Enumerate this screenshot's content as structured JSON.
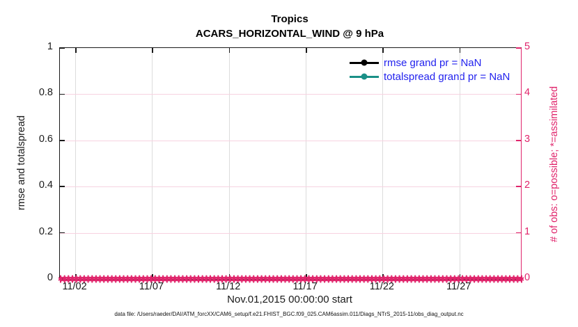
{
  "colors": {
    "axis_pink": "#E0246B",
    "series_teal": "#1A9087",
    "series_black": "#000000",
    "legend_text_blue": "#2222EE",
    "grid_x_gray": "#dcdcdc",
    "grid_y_pink": "#f7d2e0"
  },
  "chart_data": {
    "type": "line",
    "title": "Tropics",
    "subtitle": "ACARS_HORIZONTAL_WIND @ 9 hPa",
    "xlabel": "Nov.01,2015 00:00:00 start",
    "ylabel_left": "rmse and totalspread",
    "ylabel_right": "# of obs: o=possible; *=assimilated",
    "x_tick_labels": [
      "11/02",
      "11/07",
      "11/12",
      "11/17",
      "11/22",
      "11/27"
    ],
    "x_tick_days": [
      1,
      6,
      11,
      16,
      21,
      26
    ],
    "x_range_days": [
      0,
      30
    ],
    "y_left": {
      "ticks": [
        "0",
        "0.2",
        "0.4",
        "0.6",
        "0.8",
        "1"
      ],
      "range": [
        0,
        1
      ]
    },
    "y_right": {
      "ticks": [
        "0",
        "1",
        "2",
        "3",
        "4",
        "5"
      ],
      "range": [
        0,
        5
      ]
    },
    "grid": true,
    "legend": {
      "position": "top-right-inside",
      "box": false,
      "entries": [
        {
          "label": "rmse grand pr = NaN",
          "color": "#000000",
          "marker": "filled-circle"
        },
        {
          "label": "totalspread grand pr = NaN",
          "color": "#1A9087",
          "marker": "filled-circle"
        }
      ]
    },
    "series": [
      {
        "name": "rmse",
        "color": "#000000",
        "values": "NaN for all times (no line drawn)"
      },
      {
        "name": "totalspread",
        "color": "#1A9087",
        "values": "NaN for all times (no line drawn)"
      },
      {
        "name": "# of obs assimilated (*)",
        "color": "#E0246B",
        "marker": "asterisk",
        "constant_value": 0,
        "n_markers": 118,
        "note": "dense asterisk band along y=0 from 11/01 to 12/01"
      },
      {
        "name": "# of obs possible (o)",
        "color": "#E0246B",
        "marker": "circle",
        "constant_value": 0,
        "note": "hidden under asterisk band at y=0"
      }
    ]
  },
  "footer": {
    "data_file": "data file: /Users/raeder/DAI/ATM_forcXX/CAM6_setup/f.e21.FHIST_BGC.f09_025.CAM6assim.011/Diags_NTrS_2015-11/obs_diag_output.nc"
  }
}
